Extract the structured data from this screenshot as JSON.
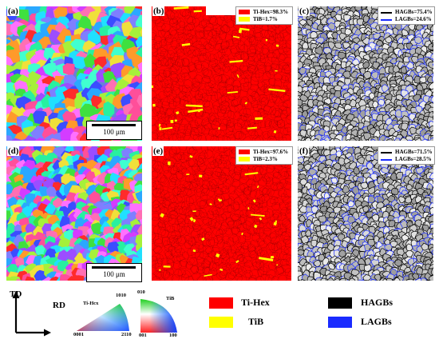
{
  "panels": {
    "a": {
      "label": "(a)",
      "scale": "100 μm"
    },
    "b": {
      "label": "(b)",
      "legend": [
        "Ti-Hex=98.3%",
        "TiB=1.7%"
      ]
    },
    "c": {
      "label": "(c)",
      "legend": [
        "HAGBs=75.4%",
        "LAGBs=24.6%"
      ]
    },
    "d": {
      "label": "(d)",
      "scale": "100 μm"
    },
    "e": {
      "label": "(e)",
      "legend": [
        "Ti-Hex=97.6%",
        "TiB=2.3%"
      ]
    },
    "f": {
      "label": "(f)",
      "legend": [
        "HAGBs=71.5%",
        "LAGBs=28.5%"
      ]
    }
  },
  "axes": {
    "td": "TD",
    "rd": "RD"
  },
  "ipf": {
    "hex": {
      "name": "Ti-Hcx",
      "top": "1010",
      "left": "0001",
      "right": "2110"
    },
    "cubic": {
      "name": "TiB",
      "top": "010",
      "left": "001",
      "right": "100"
    }
  },
  "key": {
    "ti_hex": "Ti-Hex",
    "tib": "TiB",
    "hagbs": "HAGBs",
    "lagbs": "LAGBs"
  },
  "colors": {
    "ti_hex": "#ff0000",
    "tib": "#ffff00",
    "hagb": "#000000",
    "lagb": "#1a2bff",
    "band_bg": "#c8c8c8"
  }
}
